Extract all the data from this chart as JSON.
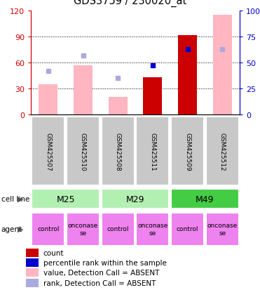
{
  "title": "GDS3759 / 230020_at",
  "samples": [
    "GSM425507",
    "GSM425510",
    "GSM425508",
    "GSM425511",
    "GSM425509",
    "GSM425512"
  ],
  "cell_line_labels": [
    "M25",
    "M29",
    "M49"
  ],
  "cell_line_spans": [
    [
      0,
      2
    ],
    [
      2,
      4
    ],
    [
      4,
      6
    ]
  ],
  "cell_line_colors": [
    "#b2f0b2",
    "#b2f0b2",
    "#44cc44"
  ],
  "agent_texts": [
    "control",
    "onconase\nse",
    "control",
    "onconase\nse",
    "control",
    "onconase\nse"
  ],
  "agent_color": "#ee82ee",
  "count_values": [
    null,
    null,
    null,
    43,
    92,
    null
  ],
  "count_color": "#cc0000",
  "rank_values": [
    null,
    null,
    null,
    47,
    63,
    null
  ],
  "rank_color": "#0000cc",
  "value_absent": [
    35,
    57,
    20,
    null,
    null,
    115
  ],
  "value_absent_color": "#ffb6c1",
  "rank_absent": [
    42,
    57,
    35,
    null,
    null,
    63
  ],
  "rank_absent_color": "#aaaadd",
  "ylim_left": [
    0,
    120
  ],
  "ylim_right": [
    0,
    100
  ],
  "yticks_left": [
    0,
    30,
    60,
    90,
    120
  ],
  "ytick_labels_left": [
    "0",
    "30",
    "60",
    "90",
    "120"
  ],
  "yticks_right_vals": [
    0,
    25,
    50,
    75,
    100
  ],
  "ytick_labels_right": [
    "0",
    "25",
    "50",
    "75",
    "100%"
  ],
  "left_axis_color": "#cc0000",
  "right_axis_color": "#0000cc",
  "sample_bg_color": "#c8c8c8",
  "legend_items": [
    {
      "label": "count",
      "color": "#cc0000"
    },
    {
      "label": "percentile rank within the sample",
      "color": "#0000cc"
    },
    {
      "label": "value, Detection Call = ABSENT",
      "color": "#ffb6c1"
    },
    {
      "label": "rank, Detection Call = ABSENT",
      "color": "#aaaadd"
    }
  ]
}
